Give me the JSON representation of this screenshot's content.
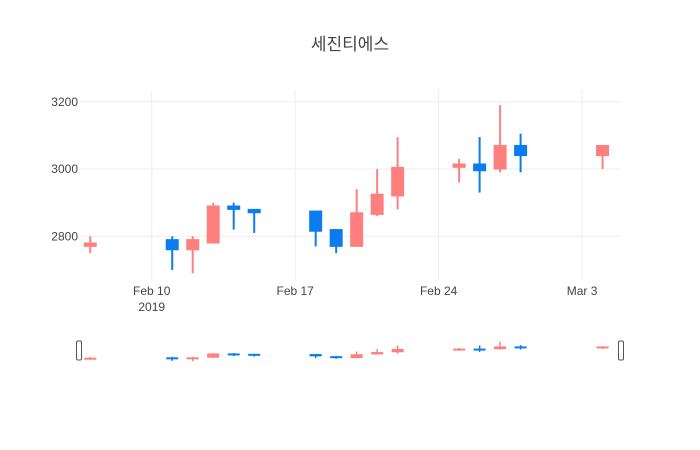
{
  "chart_data": {
    "type": "candlestick",
    "title": "세진티에스",
    "ylim": [
      2670,
      3235
    ],
    "y_ticks": [
      2800,
      3000,
      3200
    ],
    "x_ticks": [
      {
        "date": "2019-02-10",
        "label": "Feb 10",
        "sublabel": "2019"
      },
      {
        "date": "2019-02-17",
        "label": "Feb 17",
        "sublabel": ""
      },
      {
        "date": "2019-02-24",
        "label": "Feb 24",
        "sublabel": ""
      },
      {
        "date": "2019-03-03",
        "label": "Mar 3",
        "sublabel": ""
      }
    ],
    "x_range": [
      "2019-02-07",
      "2019-03-04"
    ],
    "grid": true,
    "range_slider": true,
    "colors": {
      "increasing": "#ff7f7f",
      "decreasing": "#1f77b4",
      "decreasing_fill": "#0a7cf0",
      "grid": "#eeeeee",
      "text": "#444444"
    },
    "candles": [
      {
        "date": "2019-02-07",
        "open": 2770,
        "high": 2800,
        "low": 2750,
        "close": 2780
      },
      {
        "date": "2019-02-11",
        "open": 2790,
        "high": 2800,
        "low": 2700,
        "close": 2760
      },
      {
        "date": "2019-02-12",
        "open": 2760,
        "high": 2800,
        "low": 2690,
        "close": 2790
      },
      {
        "date": "2019-02-13",
        "open": 2780,
        "high": 2900,
        "low": 2780,
        "close": 2890
      },
      {
        "date": "2019-02-14",
        "open": 2890,
        "high": 2900,
        "low": 2820,
        "close": 2880
      },
      {
        "date": "2019-02-15",
        "open": 2880,
        "high": 2880,
        "low": 2810,
        "close": 2870
      },
      {
        "date": "2019-02-18",
        "open": 2875,
        "high": 2875,
        "low": 2770,
        "close": 2815
      },
      {
        "date": "2019-02-19",
        "open": 2820,
        "high": 2820,
        "low": 2750,
        "close": 2770
      },
      {
        "date": "2019-02-20",
        "open": 2770,
        "high": 2940,
        "low": 2770,
        "close": 2870
      },
      {
        "date": "2019-02-21",
        "open": 2865,
        "high": 3000,
        "low": 2860,
        "close": 2925
      },
      {
        "date": "2019-02-22",
        "open": 2920,
        "high": 3095,
        "low": 2880,
        "close": 3005
      },
      {
        "date": "2019-02-25",
        "open": 3005,
        "high": 3030,
        "low": 2960,
        "close": 3015
      },
      {
        "date": "2019-02-26",
        "open": 3015,
        "high": 3095,
        "low": 2930,
        "close": 2995
      },
      {
        "date": "2019-02-27",
        "open": 3000,
        "high": 3190,
        "low": 2990,
        "close": 3070
      },
      {
        "date": "2019-02-28",
        "open": 3070,
        "high": 3105,
        "low": 2990,
        "close": 3040
      },
      {
        "date": "2019-03-04",
        "open": 3040,
        "high": 3070,
        "low": 3000,
        "close": 3070
      }
    ]
  }
}
